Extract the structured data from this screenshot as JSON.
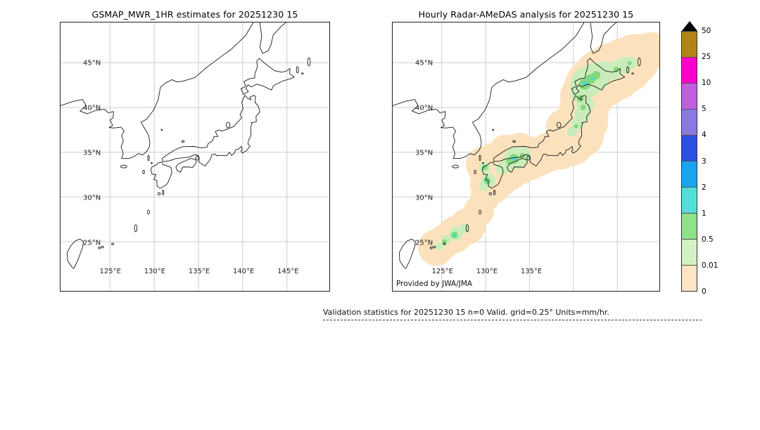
{
  "figure": {
    "background": "#ffffff"
  },
  "panels": [
    {
      "id": "gsmap",
      "title": "GSMAP_MWR_1HR estimates for 20251230 15",
      "lat_ticks": [
        {
          "label": "45°N",
          "value": 45
        },
        {
          "label": "40°N",
          "value": 40
        },
        {
          "label": "35°N",
          "value": 35
        },
        {
          "label": "30°N",
          "value": 30
        },
        {
          "label": "25°N",
          "value": 25
        }
      ],
      "lon_ticks": [
        {
          "label": "125°E",
          "value": 125
        },
        {
          "label": "130°E",
          "value": 130
        },
        {
          "label": "135°E",
          "value": 135
        },
        {
          "label": "140°E",
          "value": 140
        },
        {
          "label": "145°E",
          "value": 145
        }
      ],
      "has_precip_overlay": false
    },
    {
      "id": "radar",
      "title": "Hourly Radar-AMeDAS analysis for 20251230 15",
      "lat_ticks": [
        {
          "label": "45°N",
          "value": 45
        },
        {
          "label": "40°N",
          "value": 40
        },
        {
          "label": "35°N",
          "value": 35
        },
        {
          "label": "30°N",
          "value": 30
        },
        {
          "label": "25°N",
          "value": 25
        }
      ],
      "lon_ticks": [
        {
          "label": "125°E",
          "value": 125
        },
        {
          "label": "130°E",
          "value": 130
        },
        {
          "label": "135°E",
          "value": 135
        }
      ],
      "credit": "Provided by JWA/JMA",
      "has_precip_overlay": true
    }
  ],
  "colorbar": {
    "tick_labels": [
      "50",
      "25",
      "10",
      "5",
      "4",
      "3",
      "2",
      "1",
      "0.5",
      "0.01",
      "0"
    ],
    "tick_values": [
      50,
      25,
      10,
      5,
      4,
      3,
      2,
      1,
      0.5,
      0.01,
      0
    ],
    "segment_colors_top_to_bottom": [
      "#b08418",
      "#fa00cc",
      "#bf5fe0",
      "#8879e0",
      "#2b50dd",
      "#1ba4ee",
      "#55ded9",
      "#8ee089",
      "#d3f2c4",
      "#fde4c2"
    ],
    "overflow_triangle_color": "#000000"
  },
  "footer": {
    "text": "Validation statistics for 20251230 15  n=0 Valid. grid=0.25° Units=mm/hr."
  }
}
